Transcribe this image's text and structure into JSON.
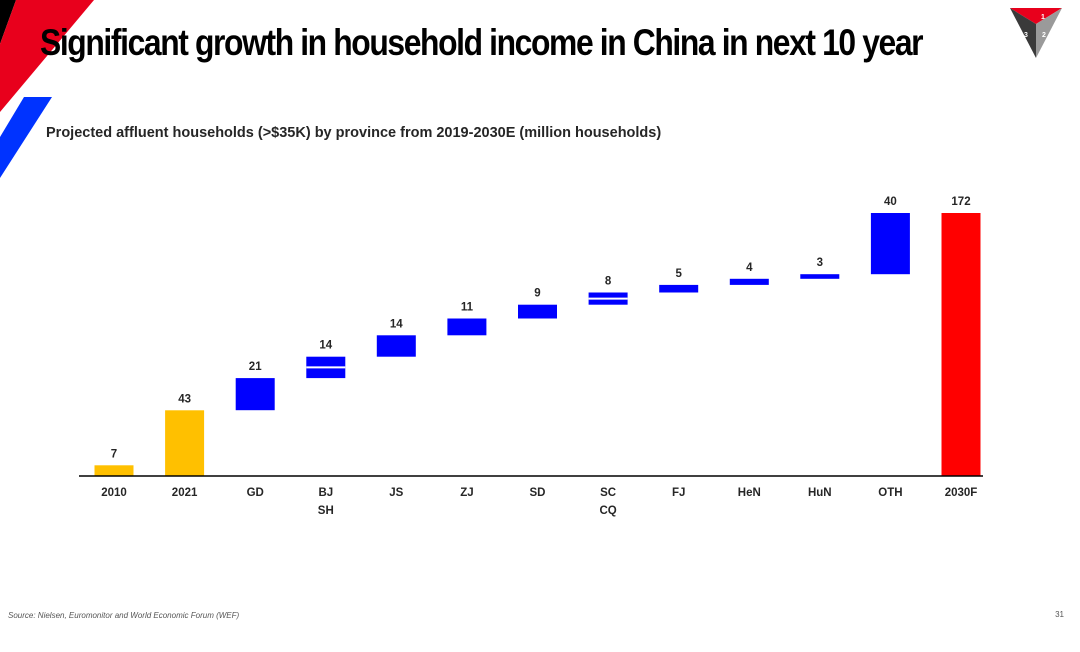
{
  "slide": {
    "title": "Significant growth in household income in China in next 10 year",
    "subtitle": "Projected affluent households (>$35K) by province from 2019-2030E  (million households)",
    "source": "Source: Nielsen, Euromonitor and World Economic Forum (WEF)",
    "page_number": "31"
  },
  "logo": {
    "numbers": [
      "1",
      "2",
      "3"
    ]
  },
  "colors": {
    "base": "#FFC000",
    "increment": "#0000FF",
    "total": "#FF0000",
    "axis": "#000000",
    "accent_red": "#E8001C",
    "accent_blue": "#0033FF"
  },
  "chart_data": {
    "type": "bar",
    "subtype": "waterfall",
    "title": "Projected affluent households (>$35K) by province from 2019-2030E  (million households)",
    "ylabel": "million households",
    "ylim": [
      0,
      172
    ],
    "grid": false,
    "legend": "none",
    "bars": [
      {
        "category": "2010",
        "label_lines": [
          "2010"
        ],
        "value": 7,
        "kind": "base",
        "start": 0,
        "end": 7
      },
      {
        "category": "2021",
        "label_lines": [
          "2021"
        ],
        "value": 43,
        "kind": "base",
        "start": 0,
        "end": 43
      },
      {
        "category": "GD",
        "label_lines": [
          "GD"
        ],
        "value": 21,
        "kind": "increment",
        "start": 43,
        "end": 64
      },
      {
        "category": "BJ SH",
        "label_lines": [
          "BJ",
          "SH"
        ],
        "value": 14,
        "kind": "increment",
        "start": 64,
        "end": 78,
        "split_at": 71
      },
      {
        "category": "JS",
        "label_lines": [
          "JS"
        ],
        "value": 14,
        "kind": "increment",
        "start": 78,
        "end": 92
      },
      {
        "category": "ZJ",
        "label_lines": [
          "ZJ"
        ],
        "value": 11,
        "kind": "increment",
        "start": 92,
        "end": 103
      },
      {
        "category": "SD",
        "label_lines": [
          "SD"
        ],
        "value": 9,
        "kind": "increment",
        "start": 103,
        "end": 112
      },
      {
        "category": "SC CQ",
        "label_lines": [
          "SC",
          "CQ"
        ],
        "value": 8,
        "kind": "increment",
        "start": 112,
        "end": 120,
        "split_at": 116
      },
      {
        "category": "FJ",
        "label_lines": [
          "FJ"
        ],
        "value": 5,
        "kind": "increment",
        "start": 120,
        "end": 125
      },
      {
        "category": "HeN",
        "label_lines": [
          "HeN"
        ],
        "value": 4,
        "kind": "increment",
        "start": 125,
        "end": 129
      },
      {
        "category": "HuN",
        "label_lines": [
          "HuN"
        ],
        "value": 3,
        "kind": "increment",
        "start": 129,
        "end": 132
      },
      {
        "category": "OTH",
        "label_lines": [
          "OTH"
        ],
        "value": 40,
        "kind": "increment",
        "start": 132,
        "end": 172
      },
      {
        "category": "2030F",
        "label_lines": [
          "2030F"
        ],
        "value": 172,
        "kind": "total",
        "start": 0,
        "end": 172
      }
    ]
  }
}
